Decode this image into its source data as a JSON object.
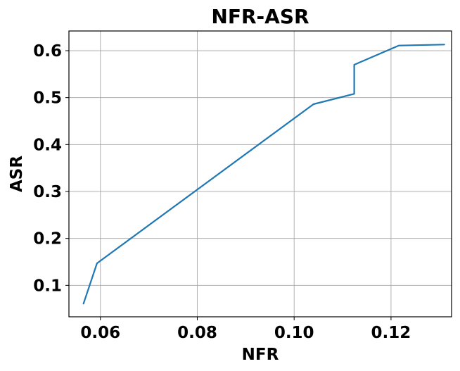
{
  "chart_data": {
    "type": "line",
    "title": "NFR-ASR",
    "xlabel": "NFR",
    "ylabel": "ASR",
    "xlim": [
      0.0535,
      0.1325
    ],
    "ylim": [
      0.033,
      0.642
    ],
    "xticks": [
      0.06,
      0.08,
      0.1,
      0.12
    ],
    "xtick_labels": [
      "0.06",
      "0.08",
      "0.10",
      "0.12"
    ],
    "yticks": [
      0.1,
      0.2,
      0.3,
      0.4,
      0.5,
      0.6
    ],
    "ytick_labels": [
      "0.1",
      "0.2",
      "0.3",
      "0.4",
      "0.5",
      "0.6"
    ],
    "grid": true,
    "legend": "none",
    "series": [
      {
        "color": "#1f77b4",
        "x": [
          0.0565,
          0.0593,
          0.104,
          0.1124,
          0.1124,
          0.1216,
          0.131
        ],
        "y": [
          0.061,
          0.147,
          0.486,
          0.508,
          0.57,
          0.611,
          0.613
        ]
      }
    ]
  }
}
